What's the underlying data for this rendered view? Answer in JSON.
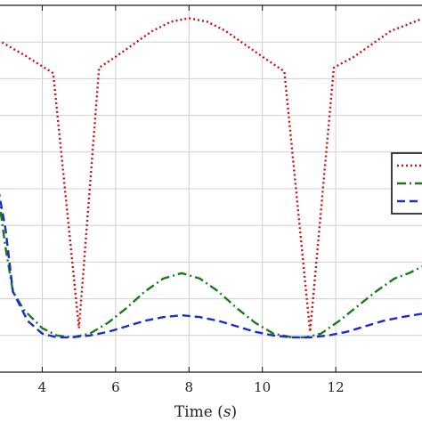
{
  "chart_data": {
    "type": "line",
    "title": "",
    "xlabel": "Time (s)",
    "xlabel_main": "Time (",
    "xlabel_unit": "s",
    "xlabel_close": ")",
    "ylabel": "",
    "xlim": [
      2.8,
      14.4
    ],
    "ylim": [
      0,
      1
    ],
    "xticks": [
      4,
      6,
      8,
      10,
      12
    ],
    "grid": true,
    "legend_placement": "right",
    "series": [
      {
        "color": "#cc1111",
        "dash": "dotted",
        "points": [
          [
            2.8,
            0.905
          ],
          [
            3.5,
            0.865
          ],
          [
            4.3,
            0.815
          ],
          [
            5.0,
            0.12
          ],
          [
            5.55,
            0.83
          ],
          [
            6.0,
            0.86
          ],
          [
            6.5,
            0.895
          ],
          [
            7.0,
            0.93
          ],
          [
            7.5,
            0.955
          ],
          [
            8.0,
            0.965
          ],
          [
            8.5,
            0.955
          ],
          [
            9.0,
            0.93
          ],
          [
            9.5,
            0.895
          ],
          [
            10.0,
            0.86
          ],
          [
            10.6,
            0.82
          ],
          [
            11.3,
            0.11
          ],
          [
            11.95,
            0.83
          ],
          [
            12.5,
            0.86
          ],
          [
            13.0,
            0.895
          ],
          [
            13.5,
            0.93
          ],
          [
            14.4,
            0.965
          ]
        ]
      },
      {
        "color": "#1a7a1a",
        "dash": "dashdot",
        "points": [
          [
            2.8,
            0.485
          ],
          [
            3.0,
            0.34
          ],
          [
            3.2,
            0.22
          ],
          [
            3.5,
            0.17
          ],
          [
            4.0,
            0.12
          ],
          [
            4.4,
            0.1
          ],
          [
            4.8,
            0.095
          ],
          [
            5.3,
            0.105
          ],
          [
            5.8,
            0.135
          ],
          [
            6.3,
            0.175
          ],
          [
            6.8,
            0.22
          ],
          [
            7.3,
            0.255
          ],
          [
            7.8,
            0.27
          ],
          [
            8.3,
            0.255
          ],
          [
            8.8,
            0.22
          ],
          [
            9.3,
            0.175
          ],
          [
            9.8,
            0.135
          ],
          [
            10.3,
            0.105
          ],
          [
            10.8,
            0.095
          ],
          [
            11.2,
            0.095
          ],
          [
            11.6,
            0.105
          ],
          [
            12.1,
            0.14
          ],
          [
            12.6,
            0.18
          ],
          [
            13.1,
            0.22
          ],
          [
            13.6,
            0.255
          ],
          [
            14.0,
            0.27
          ],
          [
            14.4,
            0.29
          ]
        ]
      },
      {
        "color": "#1a2ecc",
        "dash": "dashed",
        "points": [
          [
            2.8,
            0.5
          ],
          [
            3.0,
            0.39
          ],
          [
            3.2,
            0.22
          ],
          [
            3.6,
            0.14
          ],
          [
            4.0,
            0.105
          ],
          [
            4.4,
            0.095
          ],
          [
            4.8,
            0.095
          ],
          [
            5.3,
            0.1
          ],
          [
            5.8,
            0.11
          ],
          [
            6.3,
            0.125
          ],
          [
            6.8,
            0.14
          ],
          [
            7.3,
            0.15
          ],
          [
            7.8,
            0.155
          ],
          [
            8.3,
            0.15
          ],
          [
            8.8,
            0.14
          ],
          [
            9.3,
            0.125
          ],
          [
            9.8,
            0.11
          ],
          [
            10.3,
            0.1
          ],
          [
            10.8,
            0.095
          ],
          [
            11.3,
            0.095
          ],
          [
            11.8,
            0.1
          ],
          [
            12.3,
            0.11
          ],
          [
            12.8,
            0.125
          ],
          [
            13.3,
            0.14
          ],
          [
            13.8,
            0.15
          ],
          [
            14.4,
            0.16
          ]
        ]
      }
    ]
  }
}
